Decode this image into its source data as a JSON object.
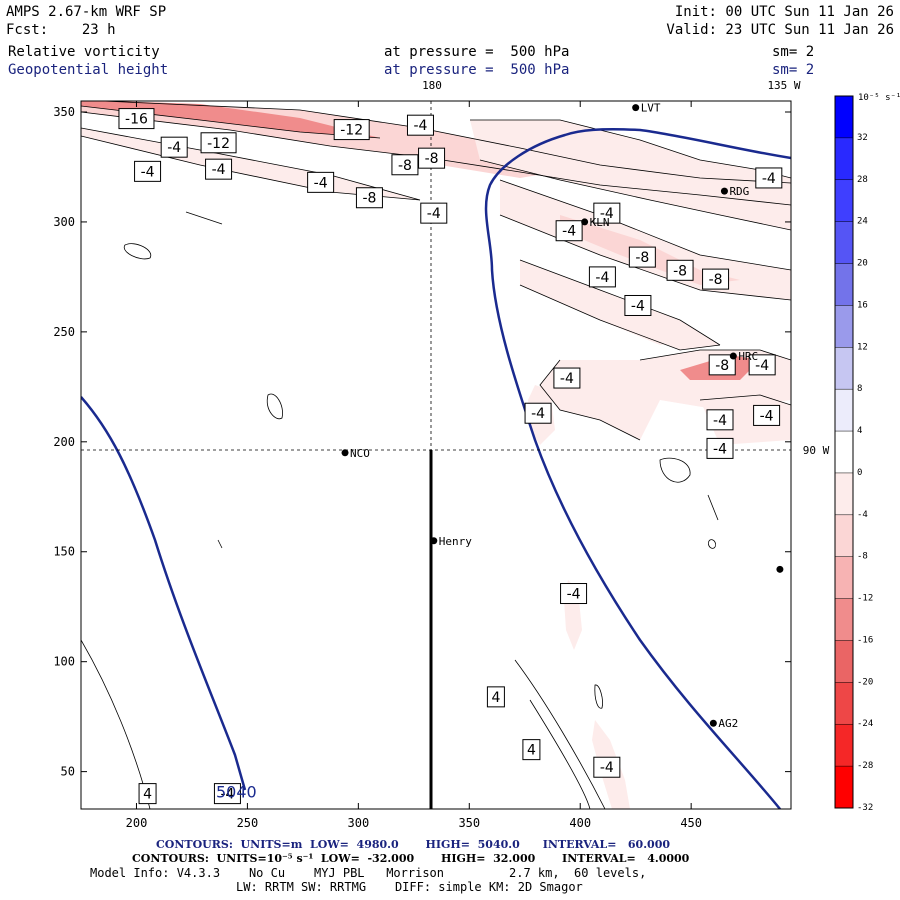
{
  "header": {
    "model": "AMPS 2.67-km WRF SP",
    "forecast": "Fcst:    23 h",
    "init": "Init: 00 UTC Sun 11 Jan 26",
    "valid": "Valid: 23 UTC Sun 11 Jan 26",
    "field1": {
      "name": "Relative vorticity",
      "level": "at pressure =  500 hPa",
      "sm": "sm= 2"
    },
    "field2": {
      "name": "Geopotential height",
      "level": "at pressure =  500 hPa",
      "sm": "sm= 2"
    }
  },
  "map_labels": {
    "lon_180": "180",
    "lon_135w": "135 W",
    "lon_90w": "90 W"
  },
  "stations": [
    {
      "name": "LVT",
      "x": 425,
      "y": 352
    },
    {
      "name": "RDG",
      "x": 465,
      "y": 314
    },
    {
      "name": "KLN",
      "x": 402,
      "y": 300
    },
    {
      "name": "HRC",
      "x": 469,
      "y": 239
    },
    {
      "name": "NCO",
      "x": 294,
      "y": 195
    },
    {
      "name": "Henry",
      "x": 334,
      "y": 155
    },
    {
      "name": "AG2",
      "x": 460,
      "y": 72
    },
    {
      "name": "",
      "x": 490,
      "y": 142
    }
  ],
  "chart_data": {
    "type": "contour",
    "xlim": [
      175,
      495
    ],
    "ylim": [
      33,
      355
    ],
    "x_ticks": [
      200,
      250,
      300,
      350,
      400,
      450
    ],
    "y_ticks": [
      50,
      100,
      150,
      200,
      250,
      300,
      350
    ],
    "vorticity_labels": [
      {
        "text": "-16",
        "x": 200,
        "y": 347
      },
      {
        "text": "-4",
        "x": 217,
        "y": 334
      },
      {
        "text": "-12",
        "x": 237,
        "y": 336
      },
      {
        "text": "-12",
        "x": 297,
        "y": 342
      },
      {
        "text": "-4",
        "x": 328,
        "y": 344
      },
      {
        "text": "-8",
        "x": 321,
        "y": 326
      },
      {
        "text": "-8",
        "x": 333,
        "y": 329
      },
      {
        "text": "-4",
        "x": 205,
        "y": 323
      },
      {
        "text": "-4",
        "x": 237,
        "y": 324
      },
      {
        "text": "-4",
        "x": 283,
        "y": 318
      },
      {
        "text": "-8",
        "x": 305,
        "y": 311
      },
      {
        "text": "-4",
        "x": 334,
        "y": 304
      },
      {
        "text": "-4",
        "x": 412,
        "y": 304
      },
      {
        "text": "-4",
        "x": 395,
        "y": 296
      },
      {
        "text": "-4",
        "x": 485,
        "y": 320
      },
      {
        "text": "-8",
        "x": 428,
        "y": 284
      },
      {
        "text": "-8",
        "x": 445,
        "y": 278
      },
      {
        "text": "-4",
        "x": 410,
        "y": 275
      },
      {
        "text": "-8",
        "x": 461,
        "y": 274
      },
      {
        "text": "-4",
        "x": 426,
        "y": 262
      },
      {
        "text": "-8",
        "x": 464,
        "y": 235
      },
      {
        "text": "-4",
        "x": 482,
        "y": 235
      },
      {
        "text": "-4",
        "x": 394,
        "y": 229
      },
      {
        "text": "-4",
        "x": 381,
        "y": 213
      },
      {
        "text": "-4",
        "x": 463,
        "y": 210
      },
      {
        "text": "-4",
        "x": 484,
        "y": 212
      },
      {
        "text": "-4",
        "x": 463,
        "y": 197
      },
      {
        "text": "-4",
        "x": 397,
        "y": 131
      },
      {
        "text": "4",
        "x": 362,
        "y": 84
      },
      {
        "text": "4",
        "x": 378,
        "y": 60
      },
      {
        "text": "-4",
        "x": 412,
        "y": 52
      },
      {
        "text": "4",
        "x": 205,
        "y": 40
      },
      {
        "text": "-4",
        "x": 241,
        "y": 40
      }
    ],
    "height_labels": [
      {
        "text": "5040",
        "x": 245,
        "y": 41
      }
    ],
    "colorbar": {
      "unit": "10⁻⁵ s⁻¹",
      "ticks": [
        "32",
        "28",
        "24",
        "20",
        "16",
        "12",
        "8",
        "4",
        "0",
        "-4",
        "-8",
        "-12",
        "-16",
        "-20",
        "-24",
        "-28",
        "-32"
      ],
      "colors": [
        "#0000ff",
        "#2929ff",
        "#3f3fff",
        "#5555f5",
        "#7373ea",
        "#9a9aeb",
        "#c6c6f2",
        "#ececfb",
        "#ffffff",
        "#fdeceb",
        "#fbd6d5",
        "#f7b3b3",
        "#f08c8c",
        "#ea6565",
        "#ee4747",
        "#f52727",
        "#ff0000"
      ]
    }
  },
  "footer": {
    "contours1": "CONTOURS:  UNITS=m  LOW=  4980.0       HIGH=  5040.0      INTERVAL=   60.000",
    "contours2": "CONTOURS:  UNITS=10⁻⁵ s⁻¹  LOW=  -32.000       HIGH=  32.000       INTERVAL=   4.0000",
    "info1": "Model Info: V4.3.3    No Cu    MYJ PBL   Morrison         2.7 km,  60 levels,",
    "info2": "LW: RRTM SW: RRTMG    DIFF: simple KM: 2D Smagor"
  }
}
